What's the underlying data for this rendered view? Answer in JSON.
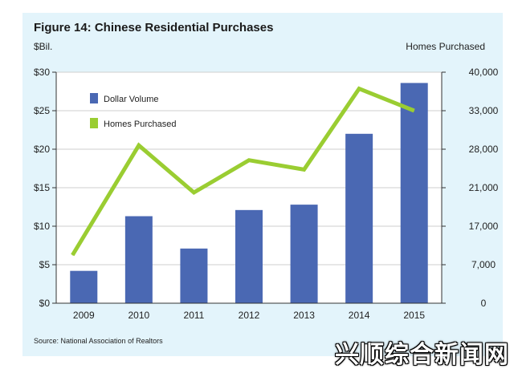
{
  "figure": {
    "title": "Figure 14: Chinese Residential Purchases",
    "source": "Source: National Association of Realtors"
  },
  "watermark": "兴顺综合新闻网",
  "colors": {
    "background": "#e3f4fb",
    "bar": "#4a68b3",
    "line": "#9acd32",
    "plot_bg": "#ffffff",
    "grid": "#cfcfcf"
  },
  "chart_data": {
    "type": "bar",
    "categories": [
      "2009",
      "2010",
      "2011",
      "2012",
      "2013",
      "2014",
      "2015"
    ],
    "left_axis": {
      "label": "$Bil.",
      "ylim": [
        0,
        30
      ],
      "ticks": [
        0,
        5,
        10,
        15,
        20,
        25,
        30
      ],
      "tick_labels": [
        "$0",
        "$5",
        "$10",
        "$15",
        "$20",
        "$25",
        "$30"
      ]
    },
    "right_axis": {
      "label": "Homes Purchased",
      "ticks": [
        0,
        1,
        2,
        3,
        4,
        5,
        6
      ],
      "tick_labels": [
        "0",
        "7,000",
        "17,000",
        "21,000",
        "28,000",
        "33,000",
        "40,000"
      ]
    },
    "grid": true,
    "legend_position": "top-left",
    "series": [
      {
        "name": "Dollar Volume",
        "type": "bar",
        "axis": "left",
        "values": [
          4.2,
          11.3,
          7.1,
          12.1,
          12.8,
          22.0,
          28.6
        ]
      },
      {
        "name": "Homes Purchased",
        "type": "line",
        "axis": "right",
        "values": [
          9500,
          28500,
          20500,
          26000,
          24300,
          37000,
          33000
        ]
      }
    ]
  }
}
